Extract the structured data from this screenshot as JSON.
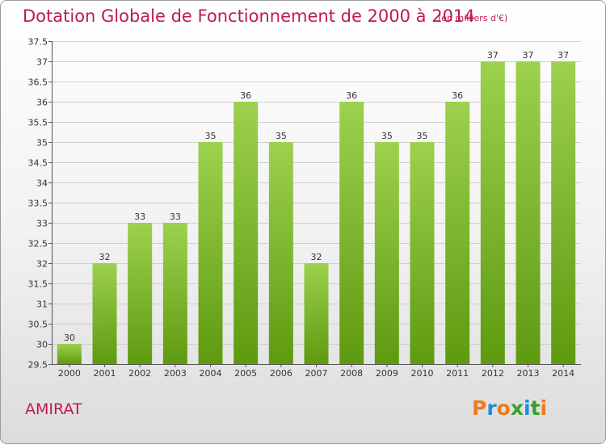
{
  "header": {
    "title": "Dotation Globale de Fonctionnement de 2000 à 2014",
    "subtitle": "(en milliers d'€)"
  },
  "place": "AMIRAT",
  "logo": {
    "text": "Proxiti",
    "letter_colors": [
      "#f07a1a",
      "#1f8fd8",
      "#f07a1a",
      "#3c9e2e",
      "#1f8fd8",
      "#3c9e2e",
      "#f07a1a"
    ]
  },
  "colors": {
    "bar_top": "#9dd14e",
    "bar_bottom": "#5e9a10",
    "title": "#c0185a",
    "grid": "#cfcfcf"
  },
  "chart_data": {
    "type": "bar",
    "title": "Dotation Globale de Fonctionnement de 2000 à 2014",
    "subtitle": "(en milliers d'€)",
    "categories": [
      "2000",
      "2001",
      "2002",
      "2003",
      "2004",
      "2005",
      "2006",
      "2007",
      "2008",
      "2009",
      "2010",
      "2011",
      "2012",
      "2013",
      "2014"
    ],
    "values": [
      30,
      32,
      33,
      33,
      35,
      36,
      35,
      32,
      36,
      35,
      35,
      36,
      37,
      37,
      37
    ],
    "data_labels": [
      "30",
      "32",
      "33",
      "33",
      "35",
      "36",
      "35",
      "32",
      "36",
      "35",
      "35",
      "36",
      "37",
      "37",
      "37"
    ],
    "ylim": [
      29.5,
      37.5
    ],
    "yticks": [
      29.5,
      30,
      30.5,
      31,
      31.5,
      32,
      32.5,
      33,
      33.5,
      34,
      34.5,
      35,
      35.5,
      36,
      36.5,
      37,
      37.5
    ],
    "ytick_labels": [
      "29.5",
      "30",
      "30.5",
      "31",
      "31.5",
      "32",
      "32.5",
      "33",
      "33.5",
      "34",
      "34.5",
      "35",
      "35.5",
      "36",
      "36.5",
      "37",
      "37.5"
    ],
    "grid": true,
    "xlabel": "",
    "ylabel": ""
  }
}
